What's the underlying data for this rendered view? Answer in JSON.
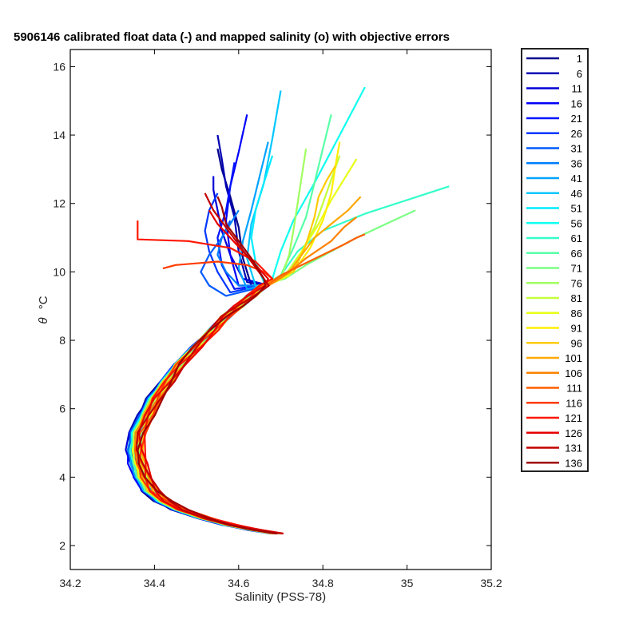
{
  "chart_data": {
    "type": "line",
    "title": "5906146 calibrated float data (-) and mapped salinity (o) with objective errors",
    "xlabel": "Salinity (PSS-78)",
    "ylabel_symbol": "θ",
    "ylabel_unit": "°C",
    "xlim": [
      34.2,
      35.2
    ],
    "ylim": [
      1.3,
      16.5
    ],
    "x_ticks": [
      34.2,
      34.4,
      34.6,
      34.8,
      35,
      35.2
    ],
    "x_tick_labels": [
      "34.2",
      "34.4",
      "34.6",
      "34.8",
      "35",
      "35.2"
    ],
    "y_ticks": [
      2,
      4,
      6,
      8,
      10,
      12,
      14,
      16
    ],
    "y_tick_labels": [
      "2",
      "4",
      "6",
      "8",
      "10",
      "12",
      "14",
      "16"
    ],
    "grid": false,
    "legend_position": "outside-right",
    "colormap": "jet",
    "deep_profile": {
      "salinity": [
        34.69,
        34.64,
        34.58,
        34.52,
        34.46,
        34.42,
        34.39,
        34.37,
        34.36,
        34.355,
        34.36,
        34.38,
        34.4,
        34.43,
        34.46,
        34.5,
        34.54,
        34.57,
        34.6,
        34.63,
        34.66
      ],
      "theta": [
        2.35,
        2.45,
        2.6,
        2.8,
        3.05,
        3.3,
        3.6,
        4.0,
        4.4,
        4.8,
        5.3,
        5.8,
        6.3,
        6.8,
        7.3,
        7.8,
        8.3,
        8.7,
        9.0,
        9.3,
        9.6
      ]
    },
    "series": [
      {
        "name": "1",
        "color": "#00008f",
        "upper": {
          "salinity": [
            34.63,
            34.61,
            34.6,
            34.58,
            34.56,
            34.55
          ],
          "theta": [
            9.6,
            10.4,
            11.3,
            12.2,
            13.0,
            13.6
          ]
        }
      },
      {
        "name": "6",
        "color": "#0000b3",
        "upper": {
          "salinity": [
            34.62,
            34.6,
            34.59,
            34.57,
            34.56,
            34.55
          ],
          "theta": [
            9.7,
            10.6,
            11.6,
            12.5,
            13.3,
            14.0
          ]
        }
      },
      {
        "name": "11",
        "color": "#0000d7",
        "upper": {
          "salinity": [
            34.61,
            34.58,
            34.56,
            34.55,
            34.54,
            34.54
          ],
          "theta": [
            9.8,
            10.5,
            11.2,
            11.8,
            12.4,
            12.8
          ]
        }
      },
      {
        "name": "16",
        "color": "#0000fb",
        "upper": {
          "salinity": [
            34.6,
            34.58,
            34.57,
            34.58,
            34.6,
            34.62
          ],
          "theta": [
            9.6,
            10.5,
            11.5,
            12.5,
            13.5,
            14.6
          ]
        }
      },
      {
        "name": "21",
        "color": "#0013ff",
        "upper": {
          "salinity": [
            34.59,
            34.56,
            34.55,
            34.57,
            34.58,
            34.59
          ],
          "theta": [
            9.5,
            10.2,
            11.0,
            11.8,
            12.5,
            13.2
          ]
        }
      },
      {
        "name": "26",
        "color": "#0037ff",
        "upper": {
          "salinity": [
            34.58,
            34.55,
            34.53,
            34.52,
            34.53,
            34.55
          ],
          "theta": [
            9.4,
            10.0,
            10.6,
            11.2,
            11.8,
            12.3
          ]
        }
      },
      {
        "name": "31",
        "color": "#005bff",
        "upper": {
          "salinity": [
            34.57,
            34.53,
            34.51,
            34.53,
            34.56,
            34.58
          ],
          "theta": [
            9.3,
            9.6,
            10.0,
            10.5,
            11.0,
            11.5
          ]
        }
      },
      {
        "name": "36",
        "color": "#007fff",
        "upper": {
          "salinity": [
            34.6,
            34.57,
            34.55,
            34.56,
            34.58,
            34.6
          ],
          "theta": [
            9.6,
            10.0,
            10.5,
            11.0,
            11.4,
            11.8
          ]
        }
      },
      {
        "name": "41",
        "color": "#00a3ff",
        "upper": {
          "salinity": [
            34.62,
            34.6,
            34.61,
            34.63,
            34.65,
            34.67
          ],
          "theta": [
            9.5,
            10.1,
            10.9,
            11.8,
            12.8,
            13.8
          ]
        }
      },
      {
        "name": "46",
        "color": "#00c7ff",
        "upper": {
          "salinity": [
            34.64,
            34.62,
            34.63,
            34.66,
            34.68,
            34.7
          ],
          "theta": [
            9.6,
            10.4,
            11.4,
            12.6,
            13.9,
            15.3
          ]
        }
      },
      {
        "name": "51",
        "color": "#00ebff",
        "upper": {
          "salinity": [
            34.66,
            34.64,
            34.63,
            34.64,
            34.66,
            34.68
          ],
          "theta": [
            9.7,
            10.3,
            11.0,
            11.8,
            12.6,
            13.4
          ]
        }
      },
      {
        "name": "56",
        "color": "#10ffef",
        "upper": {
          "salinity": [
            34.68,
            34.7,
            34.73,
            34.78,
            34.84,
            34.9
          ],
          "theta": [
            9.8,
            10.6,
            11.5,
            12.6,
            14.0,
            15.4
          ]
        }
      },
      {
        "name": "61",
        "color": "#34ffcb",
        "upper": {
          "salinity": [
            34.7,
            34.74,
            34.8,
            34.9,
            35.0,
            35.1
          ],
          "theta": [
            9.9,
            10.6,
            11.2,
            11.7,
            12.1,
            12.5
          ]
        }
      },
      {
        "name": "66",
        "color": "#58ffa7",
        "upper": {
          "salinity": [
            34.7,
            34.73,
            34.76,
            34.78,
            34.8,
            34.82
          ],
          "theta": [
            9.9,
            10.7,
            11.6,
            12.6,
            13.6,
            14.6
          ]
        }
      },
      {
        "name": "71",
        "color": "#7cff83",
        "upper": {
          "salinity": [
            34.71,
            34.76,
            34.82,
            34.88,
            34.95,
            35.02
          ],
          "theta": [
            9.8,
            10.2,
            10.6,
            11.0,
            11.4,
            11.8
          ]
        }
      },
      {
        "name": "76",
        "color": "#a0ff5f",
        "upper": {
          "salinity": [
            34.7,
            34.72,
            34.73,
            34.74,
            34.75,
            34.76
          ],
          "theta": [
            9.8,
            10.5,
            11.2,
            12.0,
            12.8,
            13.6
          ]
        }
      },
      {
        "name": "81",
        "color": "#c4ff3b",
        "upper": {
          "salinity": [
            34.71,
            34.75,
            34.78,
            34.8,
            34.82,
            34.84
          ],
          "theta": [
            9.9,
            10.6,
            11.3,
            12.0,
            12.7,
            13.4
          ]
        }
      },
      {
        "name": "86",
        "color": "#e8ff17",
        "upper": {
          "salinity": [
            34.72,
            34.75,
            34.79,
            34.82,
            34.85,
            34.88
          ],
          "theta": [
            9.9,
            10.6,
            11.4,
            12.1,
            12.7,
            13.3
          ]
        }
      },
      {
        "name": "91",
        "color": "#ffef00",
        "upper": {
          "salinity": [
            34.73,
            34.77,
            34.8,
            34.82,
            34.83,
            34.84
          ],
          "theta": [
            10.0,
            10.7,
            11.5,
            12.3,
            13.1,
            13.8
          ]
        }
      },
      {
        "name": "96",
        "color": "#ffcb00",
        "upper": {
          "salinity": [
            34.73,
            34.76,
            34.78,
            34.79,
            34.81,
            34.83
          ],
          "theta": [
            10.0,
            10.8,
            11.6,
            12.2,
            12.7,
            13.1
          ]
        }
      },
      {
        "name": "101",
        "color": "#ffa700",
        "upper": {
          "salinity": [
            34.72,
            34.75,
            34.78,
            34.82,
            34.86,
            34.89
          ],
          "theta": [
            10.0,
            10.5,
            11.0,
            11.4,
            11.8,
            12.2
          ]
        }
      },
      {
        "name": "106",
        "color": "#ff8300",
        "upper": {
          "salinity": [
            34.71,
            34.76,
            34.82,
            34.85,
            34.87,
            34.88
          ],
          "theta": [
            9.9,
            10.4,
            10.9,
            11.3,
            11.5,
            11.6
          ]
        }
      },
      {
        "name": "111",
        "color": "#ff5f00",
        "upper": {
          "salinity": [
            34.7,
            34.75,
            34.8,
            34.85,
            34.88,
            34.9
          ],
          "theta": [
            9.9,
            10.2,
            10.5,
            10.8,
            11.0,
            11.1
          ]
        }
      },
      {
        "name": "116",
        "color": "#ff3b00",
        "upper": {
          "salinity": [
            34.68,
            34.66,
            34.62,
            34.55,
            34.45,
            34.42
          ],
          "theta": [
            9.8,
            10.0,
            10.2,
            10.3,
            10.2,
            10.1
          ]
        }
      },
      {
        "name": "121",
        "color": "#ff1700",
        "upper": {
          "salinity": [
            34.68,
            34.64,
            34.58,
            34.48,
            34.36,
            34.36
          ],
          "theta": [
            9.8,
            10.3,
            10.7,
            10.9,
            10.95,
            11.5
          ]
        }
      },
      {
        "name": "126",
        "color": "#e80000",
        "upper": {
          "salinity": [
            34.67,
            34.64,
            34.61,
            34.58,
            34.55,
            34.53
          ],
          "theta": [
            9.8,
            10.2,
            10.6,
            11.0,
            11.4,
            11.8
          ]
        }
      },
      {
        "name": "131",
        "color": "#c40000",
        "upper": {
          "salinity": [
            34.66,
            34.63,
            34.6,
            34.57,
            34.54,
            34.52
          ],
          "theta": [
            9.8,
            10.3,
            10.8,
            11.3,
            11.8,
            12.3
          ]
        }
      },
      {
        "name": "136",
        "color": "#a00000",
        "upper": {
          "salinity": [
            34.66,
            34.63,
            34.6,
            34.57,
            34.56,
            34.55
          ],
          "theta": [
            9.8,
            10.4,
            10.9,
            11.4,
            11.9,
            12.2
          ]
        }
      }
    ]
  }
}
